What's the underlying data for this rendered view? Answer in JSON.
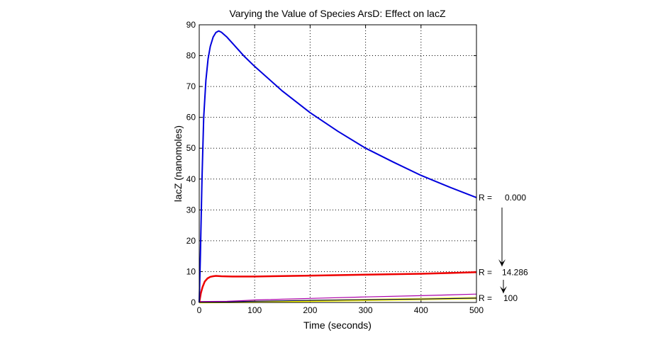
{
  "chart_data": {
    "type": "line",
    "title": "Varying the Value of Species ArsD: Effect on lacZ",
    "xlabel": "Time (seconds)",
    "ylabel": "lacZ (nanomoles)",
    "xlim": [
      0,
      500
    ],
    "ylim": [
      0,
      90
    ],
    "xticks": [
      0,
      100,
      200,
      300,
      400,
      500
    ],
    "yticks": [
      0,
      10,
      20,
      30,
      40,
      50,
      60,
      70,
      80,
      90
    ],
    "grid": true,
    "series": [
      {
        "name": "R = 0.000",
        "color": "#0000dd",
        "x": [
          0,
          2,
          5,
          8,
          12,
          16,
          20,
          25,
          30,
          35,
          40,
          50,
          60,
          80,
          100,
          150,
          200,
          250,
          300,
          350,
          400,
          450,
          500
        ],
        "y": [
          0,
          15,
          40,
          60,
          72,
          79,
          83,
          86,
          87.5,
          88,
          87.6,
          86,
          84,
          80,
          76.5,
          68.5,
          61.5,
          55.5,
          50,
          45.5,
          41.2,
          37.5,
          34
        ]
      },
      {
        "name": "R = 14.286",
        "color": "#ee0000",
        "x": [
          0,
          3,
          6,
          10,
          15,
          20,
          25,
          30,
          40,
          60,
          100,
          200,
          300,
          400,
          500
        ],
        "y": [
          0,
          3,
          5,
          6.8,
          7.8,
          8.3,
          8.5,
          8.6,
          8.5,
          8.4,
          8.4,
          8.7,
          9.0,
          9.3,
          9.8
        ]
      },
      {
        "name": "magenta",
        "color": "#aa00aa",
        "x": [
          0,
          50,
          80,
          100,
          200,
          300,
          400,
          500
        ],
        "y": [
          0.3,
          0.4,
          0.6,
          0.8,
          1.3,
          1.8,
          2.2,
          2.7
        ]
      },
      {
        "name": "dark",
        "color": "#000066",
        "x": [
          0,
          100,
          200,
          300,
          400,
          500
        ],
        "y": [
          0.1,
          0.4,
          0.7,
          0.9,
          1.1,
          1.4
        ]
      },
      {
        "name": "R = 100",
        "color": "#ffff00",
        "x": [
          0,
          100,
          200,
          300,
          400,
          500
        ],
        "y": [
          0.05,
          0.2,
          0.5,
          0.8,
          1.1,
          1.4
        ]
      }
    ],
    "annotations": [
      {
        "label": "R =",
        "value": "0.000",
        "at_y": 34
      },
      {
        "label": "R =",
        "value": "14.286",
        "at_y": 9.8
      },
      {
        "label": "R =",
        "value": "100",
        "at_y": 1.4
      }
    ]
  }
}
